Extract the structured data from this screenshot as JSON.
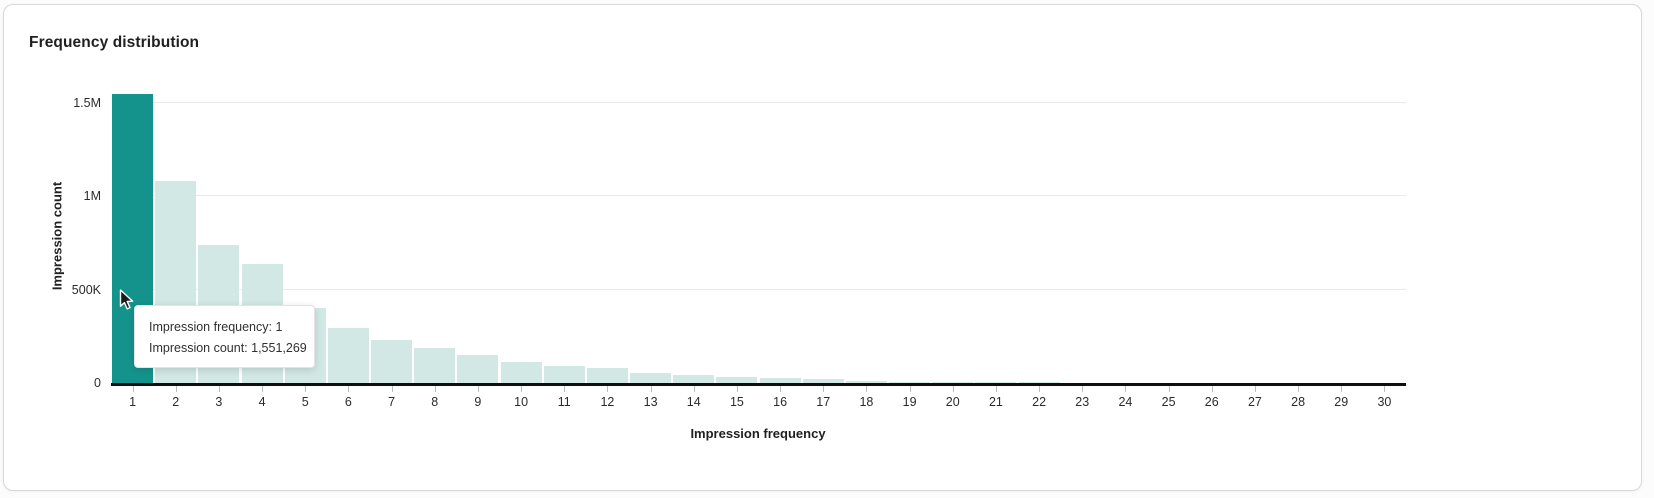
{
  "card": {
    "title": "Frequency distribution"
  },
  "chart_data": {
    "type": "bar",
    "title": "Frequency distribution",
    "xlabel": "Impression frequency",
    "ylabel": "Impression count",
    "categories": [
      1,
      2,
      3,
      4,
      5,
      6,
      7,
      8,
      9,
      10,
      11,
      12,
      13,
      14,
      15,
      16,
      17,
      18,
      19,
      20,
      21,
      22,
      23,
      24,
      25,
      26,
      27,
      28,
      29,
      30
    ],
    "values": [
      1551269,
      1080000,
      738000,
      636000,
      404000,
      293000,
      230000,
      189000,
      148000,
      114000,
      91000,
      79000,
      55000,
      41000,
      32000,
      28000,
      20000,
      11000,
      7000,
      5000,
      4000,
      3000,
      2500,
      2000,
      1500,
      1200,
      1000,
      900,
      800,
      700
    ],
    "highlighted_category": 1,
    "ylim": [
      0,
      1600000
    ],
    "yticks": [
      {
        "value": 0,
        "label": "0"
      },
      {
        "value": 500000,
        "label": "500K"
      },
      {
        "value": 1000000,
        "label": "1M"
      },
      {
        "value": 1500000,
        "label": "1.5M"
      }
    ],
    "grid": "horizontal",
    "legend": "none",
    "colors": {
      "bar": "#d1e8e5",
      "highlighted_bar": "#14938c",
      "gridline": "#e9e9e9",
      "axis": "#0f0f0f",
      "tick_text": "#2b2b2b"
    }
  },
  "tooltip": {
    "line1": "Impression frequency: 1",
    "line2": "Impression count: 1,551,269"
  }
}
